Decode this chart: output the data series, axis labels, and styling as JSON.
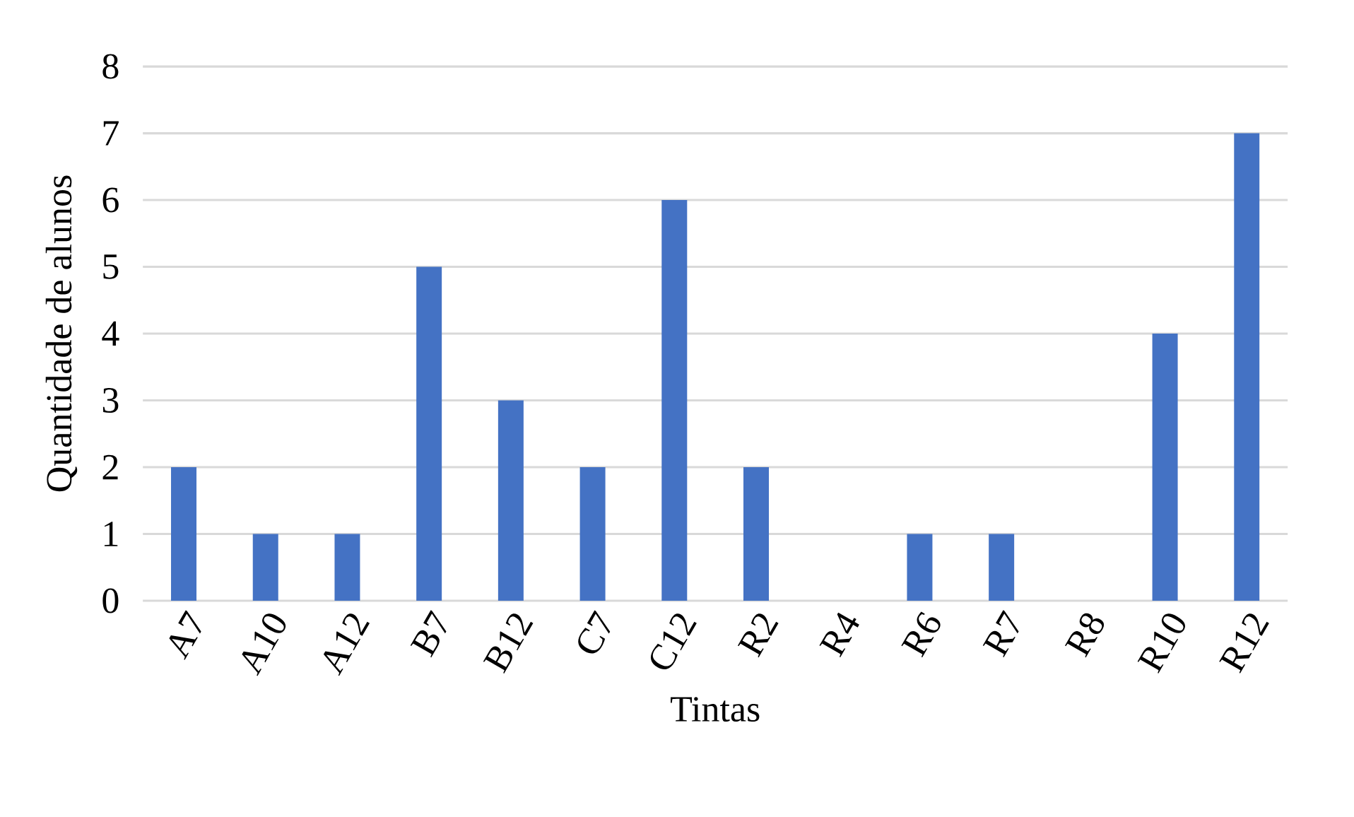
{
  "chart_data": {
    "type": "bar",
    "xlabel": "Tintas",
    "ylabel": "Quantidade de alunos",
    "categories": [
      "A7",
      "A10",
      "A12",
      "B7",
      "B12",
      "C7",
      "C12",
      "R2",
      "R4",
      "R6",
      "R7",
      "R8",
      "R10",
      "R12"
    ],
    "values": [
      2,
      1,
      1,
      5,
      3,
      2,
      6,
      2,
      0,
      1,
      1,
      0,
      4,
      7
    ],
    "color": "#4472c4",
    "ylim": [
      0,
      8
    ],
    "yticks": [
      0,
      1,
      2,
      3,
      4,
      5,
      6,
      7,
      8
    ],
    "grid": "y"
  }
}
